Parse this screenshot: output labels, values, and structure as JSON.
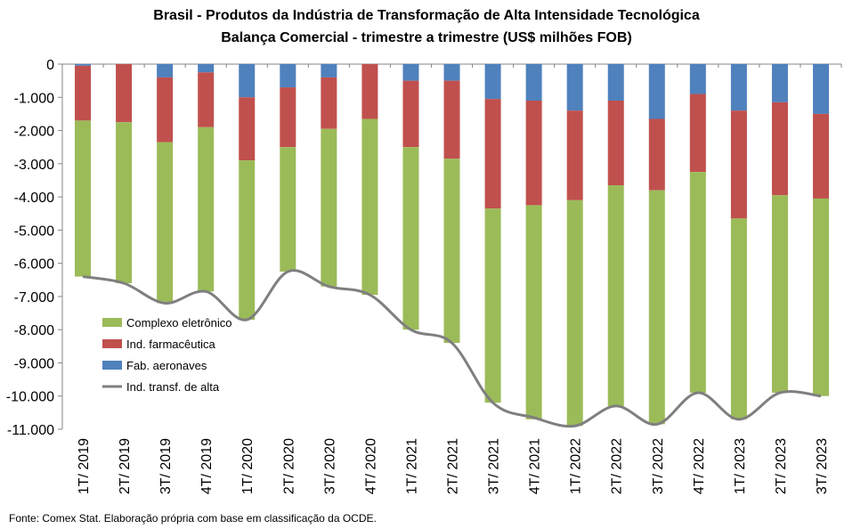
{
  "chart_data": {
    "type": "bar",
    "stacked": true,
    "title": "Brasil - Produtos da Indústria de Transformação  de Alta Intensidade Tecnológica",
    "subtitle": "Balança Comercial - trimestre a trimestre (US$ milhões FOB)",
    "categories": [
      "1T/ 2019",
      "2T/ 2019",
      "3T/ 2019",
      "4T/ 2019",
      "1T/ 2020",
      "2T/ 2020",
      "3T/ 2020",
      "4T/ 2020",
      "1T/ 2021",
      "2T/ 2021",
      "3T/ 2021",
      "4T/ 2021",
      "1T/ 2022",
      "2T/ 2022",
      "3T/ 2022",
      "4T/ 2022",
      "1T/ 2023",
      "2T/ 2023",
      "3T/ 2023"
    ],
    "ylim": [
      -11000,
      0
    ],
    "yticks": [
      0,
      -1000,
      -2000,
      -3000,
      -4000,
      -5000,
      -6000,
      -7000,
      -8000,
      -9000,
      -10000,
      -11000
    ],
    "ytick_labels": [
      "0",
      "-1.000",
      "-2.000",
      "-3.000",
      "-4.000",
      "-5.000",
      "-6.000",
      "-7.000",
      "-8.000",
      "-9.000",
      "-10.000",
      "-11.000"
    ],
    "grid": false,
    "legend_position": "left-middle",
    "series": [
      {
        "name": "Fab. aeronaves",
        "color": "#4F81BD",
        "values": [
          -50,
          0,
          -400,
          -250,
          -1000,
          -700,
          -400,
          0,
          -500,
          -500,
          -1050,
          -1100,
          -1400,
          -1100,
          -1650,
          -900,
          -1400,
          -1150,
          -1500
        ]
      },
      {
        "name": "Ind. farmacêutica",
        "color": "#C0504D",
        "values": [
          -1650,
          -1750,
          -1950,
          -1650,
          -1900,
          -1800,
          -1550,
          -1650,
          -2000,
          -2350,
          -3300,
          -3150,
          -2700,
          -2550,
          -2150,
          -2350,
          -3250,
          -2800,
          -2550
        ]
      },
      {
        "name": "Complexo eletrônico",
        "color": "#9BBB59",
        "values": [
          -4700,
          -4850,
          -4850,
          -4950,
          -4800,
          -3750,
          -4750,
          -5300,
          -5500,
          -5550,
          -5850,
          -6450,
          -6800,
          -6650,
          -7050,
          -6650,
          -6050,
          -5950,
          -5950
        ]
      }
    ],
    "line": {
      "name": "Ind. transf. de alta",
      "color": "#7F7F7F",
      "values": [
        -6400,
        -6600,
        -7200,
        -6850,
        -7700,
        -6250,
        -6700,
        -6950,
        -8000,
        -8400,
        -10200,
        -10650,
        -10900,
        -10300,
        -10850,
        -9900,
        -10700,
        -9900,
        -10000
      ]
    },
    "legend_order": [
      "Complexo eletrônico",
      "Ind. farmacêutica",
      "Fab. aeronaves",
      "Ind. transf. de alta"
    ]
  },
  "footer": {
    "source": "Fonte: Comex Stat. Elaboração própria com base em classificação da OCDE."
  }
}
